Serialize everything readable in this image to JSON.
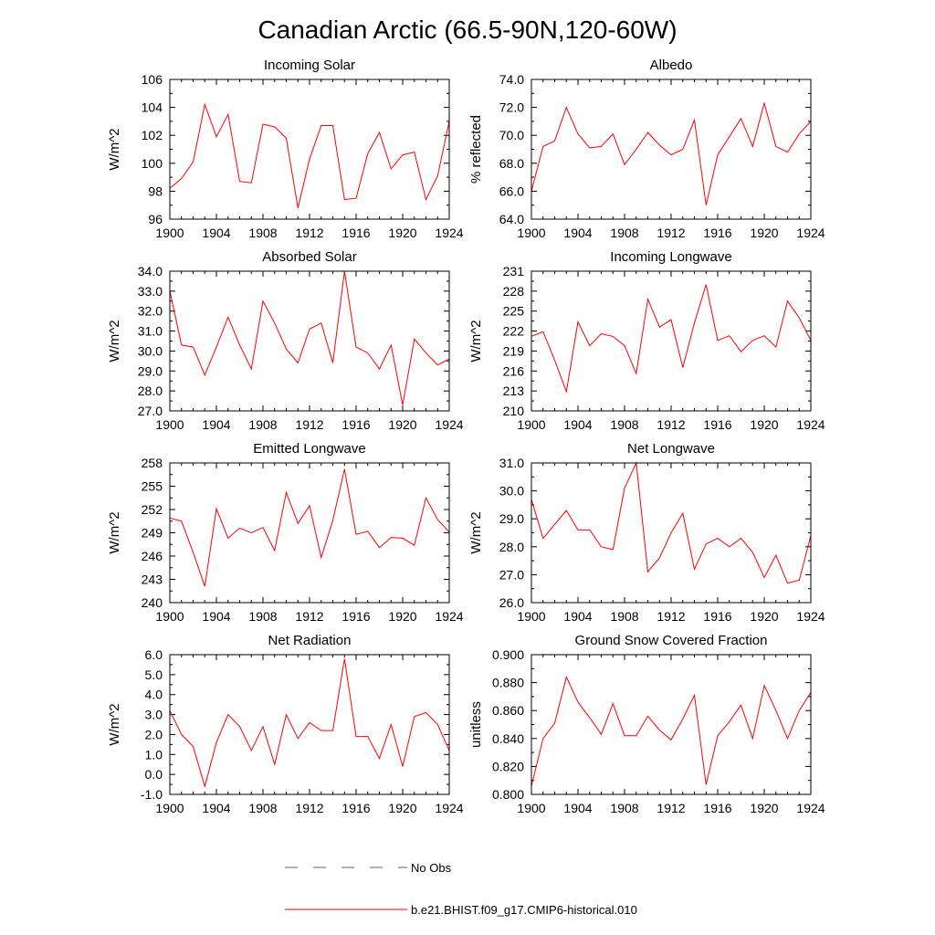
{
  "figure": {
    "title": "Canadian Arctic (66.5-90N,120-60W)"
  },
  "legend": {
    "entries": [
      {
        "label": "No Obs",
        "color": "#5555bb",
        "style": "dashed"
      },
      {
        "label": "b.e21.BHIST.f09_g17.CMIP6-historical.010",
        "color": "#ff0000",
        "style": "solid"
      }
    ]
  },
  "chart_data": [
    {
      "type": "line",
      "title": "Incoming Solar",
      "ylabel": "W/m^2",
      "x": [
        1900,
        1901,
        1902,
        1903,
        1904,
        1905,
        1906,
        1907,
        1908,
        1909,
        1910,
        1911,
        1912,
        1913,
        1914,
        1915,
        1916,
        1917,
        1918,
        1919,
        1920,
        1921,
        1922,
        1923,
        1924
      ],
      "xlim": [
        1900,
        1924
      ],
      "xticks": [
        1900,
        1904,
        1908,
        1912,
        1916,
        1920,
        1924
      ],
      "ylim": [
        96,
        106
      ],
      "yticks": [
        96,
        98,
        100,
        102,
        104,
        106
      ],
      "ytick_labels": [
        "96",
        "98",
        "100",
        "102",
        "104",
        "106"
      ],
      "series": [
        {
          "color": "#ff0000",
          "values": [
            98.2,
            98.9,
            100.1,
            104.2,
            101.9,
            103.5,
            98.7,
            98.6,
            102.8,
            102.6,
            101.8,
            96.8,
            100.3,
            102.7,
            102.7,
            97.4,
            97.5,
            100.7,
            102.2,
            99.6,
            100.6,
            100.8,
            97.4,
            99.1,
            103.0
          ]
        }
      ]
    },
    {
      "type": "line",
      "title": "Albedo",
      "ylabel": "% reflected",
      "x": [
        1900,
        1901,
        1902,
        1903,
        1904,
        1905,
        1906,
        1907,
        1908,
        1909,
        1910,
        1911,
        1912,
        1913,
        1914,
        1915,
        1916,
        1917,
        1918,
        1919,
        1920,
        1921,
        1922,
        1923,
        1924
      ],
      "xlim": [
        1900,
        1924
      ],
      "xticks": [
        1900,
        1904,
        1908,
        1912,
        1916,
        1920,
        1924
      ],
      "ylim": [
        64,
        74
      ],
      "yticks": [
        64,
        66,
        68,
        70,
        72,
        74
      ],
      "ytick_labels": [
        "64.0",
        "66.0",
        "68.0",
        "70.0",
        "72.0",
        "74.0"
      ],
      "series": [
        {
          "color": "#ff0000",
          "values": [
            66.0,
            69.2,
            69.6,
            72.0,
            70.1,
            69.1,
            69.2,
            70.1,
            67.9,
            69.0,
            70.2,
            69.3,
            68.6,
            69.0,
            71.1,
            65.0,
            68.6,
            69.9,
            71.2,
            69.2,
            72.3,
            69.2,
            68.8,
            70.1,
            71.0
          ]
        }
      ]
    },
    {
      "type": "line",
      "title": "Absorbed Solar",
      "ylabel": "W/m^2",
      "x": [
        1900,
        1901,
        1902,
        1903,
        1904,
        1905,
        1906,
        1907,
        1908,
        1909,
        1910,
        1911,
        1912,
        1913,
        1914,
        1915,
        1916,
        1917,
        1918,
        1919,
        1920,
        1921,
        1922,
        1923,
        1924
      ],
      "xlim": [
        1900,
        1924
      ],
      "xticks": [
        1900,
        1904,
        1908,
        1912,
        1916,
        1920,
        1924
      ],
      "ylim": [
        27,
        34
      ],
      "yticks": [
        27,
        28,
        29,
        30,
        31,
        32,
        33,
        34
      ],
      "ytick_labels": [
        "27.0",
        "28.0",
        "29.0",
        "30.0",
        "31.0",
        "32.0",
        "33.0",
        "34.0"
      ],
      "series": [
        {
          "color": "#ff0000",
          "values": [
            33.0,
            30.3,
            30.2,
            28.8,
            30.2,
            31.7,
            30.3,
            29.1,
            32.5,
            31.4,
            30.1,
            29.4,
            31.1,
            31.4,
            29.4,
            34.0,
            30.2,
            29.9,
            29.1,
            30.3,
            27.3,
            30.6,
            29.9,
            29.3,
            29.6
          ]
        }
      ]
    },
    {
      "type": "line",
      "title": "Incoming Longwave",
      "ylabel": "W/m^2",
      "x": [
        1900,
        1901,
        1902,
        1903,
        1904,
        1905,
        1906,
        1907,
        1908,
        1909,
        1910,
        1911,
        1912,
        1913,
        1914,
        1915,
        1916,
        1917,
        1918,
        1919,
        1920,
        1921,
        1922,
        1923,
        1924
      ],
      "xlim": [
        1900,
        1924
      ],
      "xticks": [
        1900,
        1904,
        1908,
        1912,
        1916,
        1920,
        1924
      ],
      "ylim": [
        210,
        231
      ],
      "yticks": [
        210,
        213,
        216,
        219,
        222,
        225,
        228,
        231
      ],
      "ytick_labels": [
        "210",
        "213",
        "216",
        "219",
        "222",
        "225",
        "228",
        "231"
      ],
      "series": [
        {
          "color": "#ff0000",
          "values": [
            221.2,
            221.9,
            217.6,
            212.9,
            223.4,
            219.8,
            221.6,
            221.2,
            219.8,
            215.6,
            226.8,
            222.6,
            223.7,
            216.5,
            223.2,
            229.0,
            220.6,
            221.3,
            218.9,
            220.6,
            221.3,
            219.6,
            226.5,
            224.0,
            220.6
          ]
        }
      ]
    },
    {
      "type": "line",
      "title": "Emitted Longwave",
      "ylabel": "W/m^2",
      "x": [
        1900,
        1901,
        1902,
        1903,
        1904,
        1905,
        1906,
        1907,
        1908,
        1909,
        1910,
        1911,
        1912,
        1913,
        1914,
        1915,
        1916,
        1917,
        1918,
        1919,
        1920,
        1921,
        1922,
        1923,
        1924
      ],
      "xlim": [
        1900,
        1924
      ],
      "xticks": [
        1900,
        1904,
        1908,
        1912,
        1916,
        1920,
        1924
      ],
      "ylim": [
        240,
        258
      ],
      "yticks": [
        240,
        243,
        246,
        249,
        252,
        255,
        258
      ],
      "ytick_labels": [
        "240",
        "243",
        "246",
        "249",
        "252",
        "255",
        "258"
      ],
      "series": [
        {
          "color": "#ff0000",
          "values": [
            250.9,
            250.5,
            246.5,
            242.1,
            252.1,
            248.3,
            249.6,
            249.0,
            249.7,
            246.7,
            254.2,
            250.2,
            252.5,
            245.8,
            250.6,
            257.2,
            248.8,
            249.2,
            247.1,
            248.4,
            248.3,
            247.4,
            253.5,
            250.7,
            249.1
          ]
        }
      ]
    },
    {
      "type": "line",
      "title": "Net Longwave",
      "ylabel": "W/m^2",
      "x": [
        1900,
        1901,
        1902,
        1903,
        1904,
        1905,
        1906,
        1907,
        1908,
        1909,
        1910,
        1911,
        1912,
        1913,
        1914,
        1915,
        1916,
        1917,
        1918,
        1919,
        1920,
        1921,
        1922,
        1923,
        1924
      ],
      "xlim": [
        1900,
        1924
      ],
      "xticks": [
        1900,
        1904,
        1908,
        1912,
        1916,
        1920,
        1924
      ],
      "ylim": [
        26,
        31
      ],
      "yticks": [
        26,
        27,
        28,
        29,
        30,
        31
      ],
      "ytick_labels": [
        "26.0",
        "27.0",
        "28.0",
        "29.0",
        "30.0",
        "31.0"
      ],
      "series": [
        {
          "color": "#ff0000",
          "values": [
            29.7,
            28.3,
            28.8,
            29.3,
            28.6,
            28.6,
            28.0,
            27.9,
            30.1,
            31.0,
            27.1,
            27.6,
            28.5,
            29.2,
            27.2,
            28.1,
            28.3,
            28.0,
            28.3,
            27.8,
            26.9,
            27.7,
            26.7,
            26.8,
            28.4
          ]
        }
      ]
    },
    {
      "type": "line",
      "title": "Net Radiation",
      "ylabel": "W/m^2",
      "x": [
        1900,
        1901,
        1902,
        1903,
        1904,
        1905,
        1906,
        1907,
        1908,
        1909,
        1910,
        1911,
        1912,
        1913,
        1914,
        1915,
        1916,
        1917,
        1918,
        1919,
        1920,
        1921,
        1922,
        1923,
        1924
      ],
      "xlim": [
        1900,
        1924
      ],
      "xticks": [
        1900,
        1904,
        1908,
        1912,
        1916,
        1920,
        1924
      ],
      "ylim": [
        -1,
        6
      ],
      "yticks": [
        -1,
        0,
        1,
        2,
        3,
        4,
        5,
        6
      ],
      "ytick_labels": [
        "-1.0",
        "0.0",
        "1.0",
        "2.0",
        "3.0",
        "4.0",
        "5.0",
        "6.0"
      ],
      "series": [
        {
          "color": "#ff0000",
          "values": [
            3.2,
            2.0,
            1.4,
            -0.6,
            1.6,
            3.0,
            2.4,
            1.2,
            2.4,
            0.5,
            3.0,
            1.8,
            2.6,
            2.2,
            2.2,
            5.8,
            1.9,
            1.9,
            0.8,
            2.5,
            0.4,
            2.9,
            3.1,
            2.5,
            1.2
          ]
        }
      ]
    },
    {
      "type": "line",
      "title": "Ground Snow Covered Fraction",
      "ylabel": "unitless",
      "x": [
        1900,
        1901,
        1902,
        1903,
        1904,
        1905,
        1906,
        1907,
        1908,
        1909,
        1910,
        1911,
        1912,
        1913,
        1914,
        1915,
        1916,
        1917,
        1918,
        1919,
        1920,
        1921,
        1922,
        1923,
        1924
      ],
      "xlim": [
        1900,
        1924
      ],
      "xticks": [
        1900,
        1904,
        1908,
        1912,
        1916,
        1920,
        1924
      ],
      "ylim": [
        0.8,
        0.9
      ],
      "yticks": [
        0.8,
        0.82,
        0.84,
        0.86,
        0.88,
        0.9
      ],
      "ytick_labels": [
        "0.800",
        "0.820",
        "0.840",
        "0.860",
        "0.880",
        "0.900"
      ],
      "series": [
        {
          "color": "#ff0000",
          "values": [
            0.806,
            0.84,
            0.851,
            0.884,
            0.866,
            0.855,
            0.843,
            0.865,
            0.842,
            0.842,
            0.856,
            0.846,
            0.839,
            0.854,
            0.871,
            0.807,
            0.842,
            0.852,
            0.864,
            0.84,
            0.878,
            0.86,
            0.84,
            0.86,
            0.873
          ]
        }
      ]
    }
  ]
}
